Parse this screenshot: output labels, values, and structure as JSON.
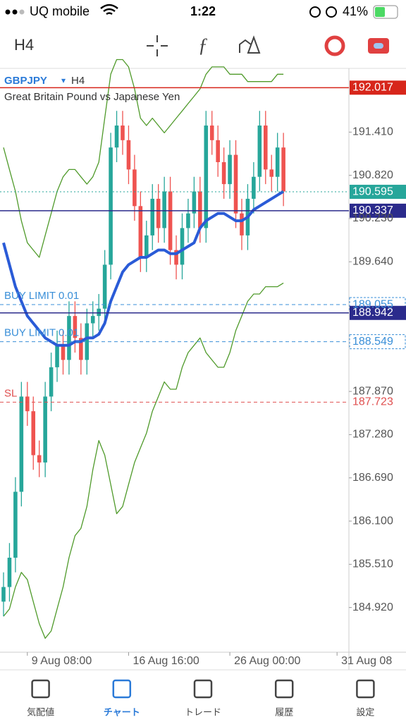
{
  "status_bar": {
    "carrier": "UQ mobile",
    "time": "1:22",
    "battery": "41%"
  },
  "toolbar": {
    "timeframe": "H4"
  },
  "chart_data": {
    "type": "candlestick",
    "symbol": "GBPJPY",
    "timeframe": "H4",
    "description": "Great Britain Pound vs Japanese Yen",
    "categories": [
      null,
      null,
      null,
      null,
      "9 Aug 08:00",
      null,
      null,
      null,
      null,
      null,
      null,
      null,
      null,
      null,
      null,
      null,
      null,
      null,
      null,
      null,
      null,
      "16 Aug 16:00",
      null,
      null,
      null,
      null,
      null,
      null,
      null,
      null,
      null,
      null,
      null,
      null,
      null,
      null,
      null,
      null,
      "26 Aug 00:00",
      null,
      null,
      null,
      null,
      null,
      null,
      null,
      null,
      null,
      null,
      null,
      null,
      null,
      null,
      null,
      null,
      null,
      "31 Aug 08"
    ],
    "open": [
      185.0,
      185.2,
      185.6,
      186.5,
      187.8,
      187.6,
      187.0,
      186.9,
      187.8,
      188.2,
      188.5,
      188.3,
      188.9,
      188.6,
      188.3,
      188.8,
      188.9,
      189.0,
      189.6,
      191.2,
      191.5,
      191.3,
      190.9,
      190.4,
      189.7,
      190.0,
      190.5,
      190.1,
      190.6,
      189.8,
      189.6,
      190.1,
      190.3,
      190.6,
      190.1,
      191.5,
      191.3,
      191.0,
      190.7,
      191.1,
      190.3,
      190.0,
      190.5,
      190.8,
      191.5,
      190.9,
      190.8,
      191.2,
      null,
      null,
      null,
      null,
      null,
      null,
      null,
      null,
      null
    ],
    "high": [
      185.4,
      185.8,
      186.7,
      188.0,
      188.0,
      187.8,
      187.2,
      188.0,
      188.4,
      188.7,
      188.7,
      189.1,
      189.1,
      188.8,
      189.0,
      189.1,
      189.2,
      189.8,
      191.4,
      191.7,
      191.7,
      191.5,
      191.1,
      190.6,
      190.2,
      190.7,
      190.7,
      190.8,
      190.8,
      190.0,
      190.3,
      190.5,
      190.8,
      190.8,
      191.7,
      191.7,
      191.5,
      191.2,
      191.3,
      191.3,
      190.5,
      190.7,
      191.0,
      191.7,
      191.7,
      191.1,
      191.4,
      191.4,
      null,
      null,
      null,
      null,
      null,
      null,
      null,
      null,
      null
    ],
    "low": [
      184.8,
      185.0,
      185.4,
      186.3,
      187.4,
      186.8,
      186.7,
      186.7,
      187.6,
      188.0,
      188.1,
      188.1,
      188.4,
      188.1,
      188.1,
      188.6,
      188.7,
      188.8,
      189.4,
      191.0,
      191.1,
      190.7,
      190.2,
      189.5,
      189.5,
      189.8,
      189.9,
      189.9,
      189.6,
      189.4,
      189.4,
      189.9,
      190.1,
      189.9,
      189.9,
      191.1,
      190.8,
      190.5,
      190.5,
      190.1,
      189.8,
      189.8,
      190.3,
      190.6,
      190.7,
      190.6,
      190.6,
      190.4,
      null,
      null,
      null,
      null,
      null,
      null,
      null,
      null,
      null
    ],
    "close": [
      185.2,
      185.6,
      186.5,
      187.8,
      187.6,
      187.0,
      186.9,
      187.8,
      188.2,
      188.5,
      188.3,
      188.9,
      188.6,
      188.3,
      188.8,
      188.9,
      189.0,
      189.6,
      191.2,
      191.5,
      191.3,
      190.9,
      190.4,
      189.7,
      190.0,
      190.5,
      190.1,
      190.6,
      189.8,
      189.6,
      190.1,
      190.3,
      190.6,
      190.1,
      191.5,
      191.3,
      191.0,
      190.7,
      191.1,
      190.3,
      190.0,
      190.5,
      190.8,
      191.5,
      190.9,
      190.8,
      191.2,
      190.6,
      null,
      null,
      null,
      null,
      null,
      null,
      null,
      null,
      null
    ],
    "up_color": "#26a69a",
    "down_color": "#ef5350",
    "series": [
      {
        "color": "#2a5bd7",
        "width": 4,
        "values": [
          189.9,
          189.6,
          189.3,
          189.1,
          188.9,
          188.8,
          188.7,
          188.6,
          188.55,
          188.5,
          188.5,
          188.5,
          188.55,
          188.55,
          188.6,
          188.6,
          188.65,
          188.8,
          189.1,
          189.3,
          189.5,
          189.6,
          189.65,
          189.7,
          189.7,
          189.75,
          189.8,
          189.8,
          189.75,
          189.75,
          189.8,
          189.85,
          189.9,
          190.1,
          190.2,
          190.25,
          190.3,
          190.3,
          190.25,
          190.2,
          190.2,
          190.25,
          190.35,
          190.4,
          190.45,
          190.5,
          190.55,
          190.6,
          null,
          null,
          null,
          null,
          null,
          null,
          null,
          null,
          null
        ]
      },
      {
        "color": "#4f9a2a",
        "width": 1.3,
        "values": [
          191.2,
          190.9,
          190.6,
          190.2,
          189.9,
          189.8,
          189.7,
          190.0,
          190.3,
          190.6,
          190.8,
          190.9,
          190.9,
          190.8,
          190.7,
          190.8,
          191.0,
          191.6,
          192.2,
          192.4,
          192.4,
          192.3,
          192.0,
          191.6,
          191.5,
          191.6,
          191.5,
          191.4,
          191.5,
          191.6,
          191.7,
          191.8,
          191.9,
          192.0,
          192.2,
          192.3,
          192.3,
          192.3,
          192.2,
          192.2,
          192.2,
          192.1,
          192.1,
          192.1,
          192.1,
          192.1,
          192.2,
          192.2,
          null,
          null,
          null,
          null,
          null,
          null,
          null,
          null,
          null
        ]
      },
      {
        "color": "#4f9a2a",
        "width": 1.3,
        "values": [
          184.8,
          184.9,
          185.2,
          185.4,
          185.3,
          185.0,
          184.7,
          184.5,
          184.6,
          184.9,
          185.2,
          185.6,
          185.9,
          186.0,
          186.3,
          186.8,
          187.2,
          187.0,
          186.6,
          186.2,
          186.3,
          186.6,
          186.9,
          187.1,
          187.3,
          187.6,
          187.8,
          188.0,
          187.9,
          187.9,
          188.2,
          188.4,
          188.5,
          188.6,
          188.4,
          188.3,
          188.2,
          188.2,
          188.4,
          188.7,
          188.9,
          189.1,
          189.2,
          189.2,
          189.3,
          189.3,
          189.3,
          189.35,
          null,
          null,
          null,
          null,
          null,
          null,
          null,
          null,
          null
        ]
      }
    ],
    "ylim": [
      184.31,
      192.28
    ],
    "yticks": [
      {
        "value": 191.41,
        "label": "191.410"
      },
      {
        "value": 190.82,
        "label": "190.820"
      },
      {
        "value": 190.23,
        "label": "190.230"
      },
      {
        "value": 189.64,
        "label": "189.640"
      },
      {
        "value": 187.87,
        "label": "187.870"
      },
      {
        "value": 187.28,
        "label": "187.280"
      },
      {
        "value": 186.69,
        "label": "186.690"
      },
      {
        "value": 186.1,
        "label": "186.100"
      },
      {
        "value": 185.51,
        "label": "185.510"
      },
      {
        "value": 184.92,
        "label": "184.920"
      }
    ],
    "price_lines": [
      {
        "value": 192.017,
        "color": "#d7261b",
        "style": "solid",
        "box": "fill"
      },
      {
        "value": 190.595,
        "color": "#26a69a",
        "style": "dotted",
        "box": "fill"
      },
      {
        "value": 190.337,
        "color": "#2b2b8c",
        "style": "solid",
        "box": "fill"
      },
      {
        "value": 189.055,
        "color": "#3a8fd8",
        "style": "dashed",
        "box": "outline",
        "text": "BUY LIMIT 0.01"
      },
      {
        "value": 188.942,
        "color": "#2b2b8c",
        "style": "solid",
        "box": "fill"
      },
      {
        "value": 188.549,
        "color": "#3a8fd8",
        "style": "dashed",
        "box": "outline",
        "text": "BUY LIMIT 0.01"
      },
      {
        "value": 187.723,
        "color": "#e05050",
        "style": "dashed",
        "box": "none",
        "text": "SL"
      }
    ]
  },
  "tabs": [
    {
      "label": "気配値"
    },
    {
      "label": "チャート",
      "active": true
    },
    {
      "label": "トレード"
    },
    {
      "label": "履歴"
    },
    {
      "label": "設定"
    }
  ]
}
